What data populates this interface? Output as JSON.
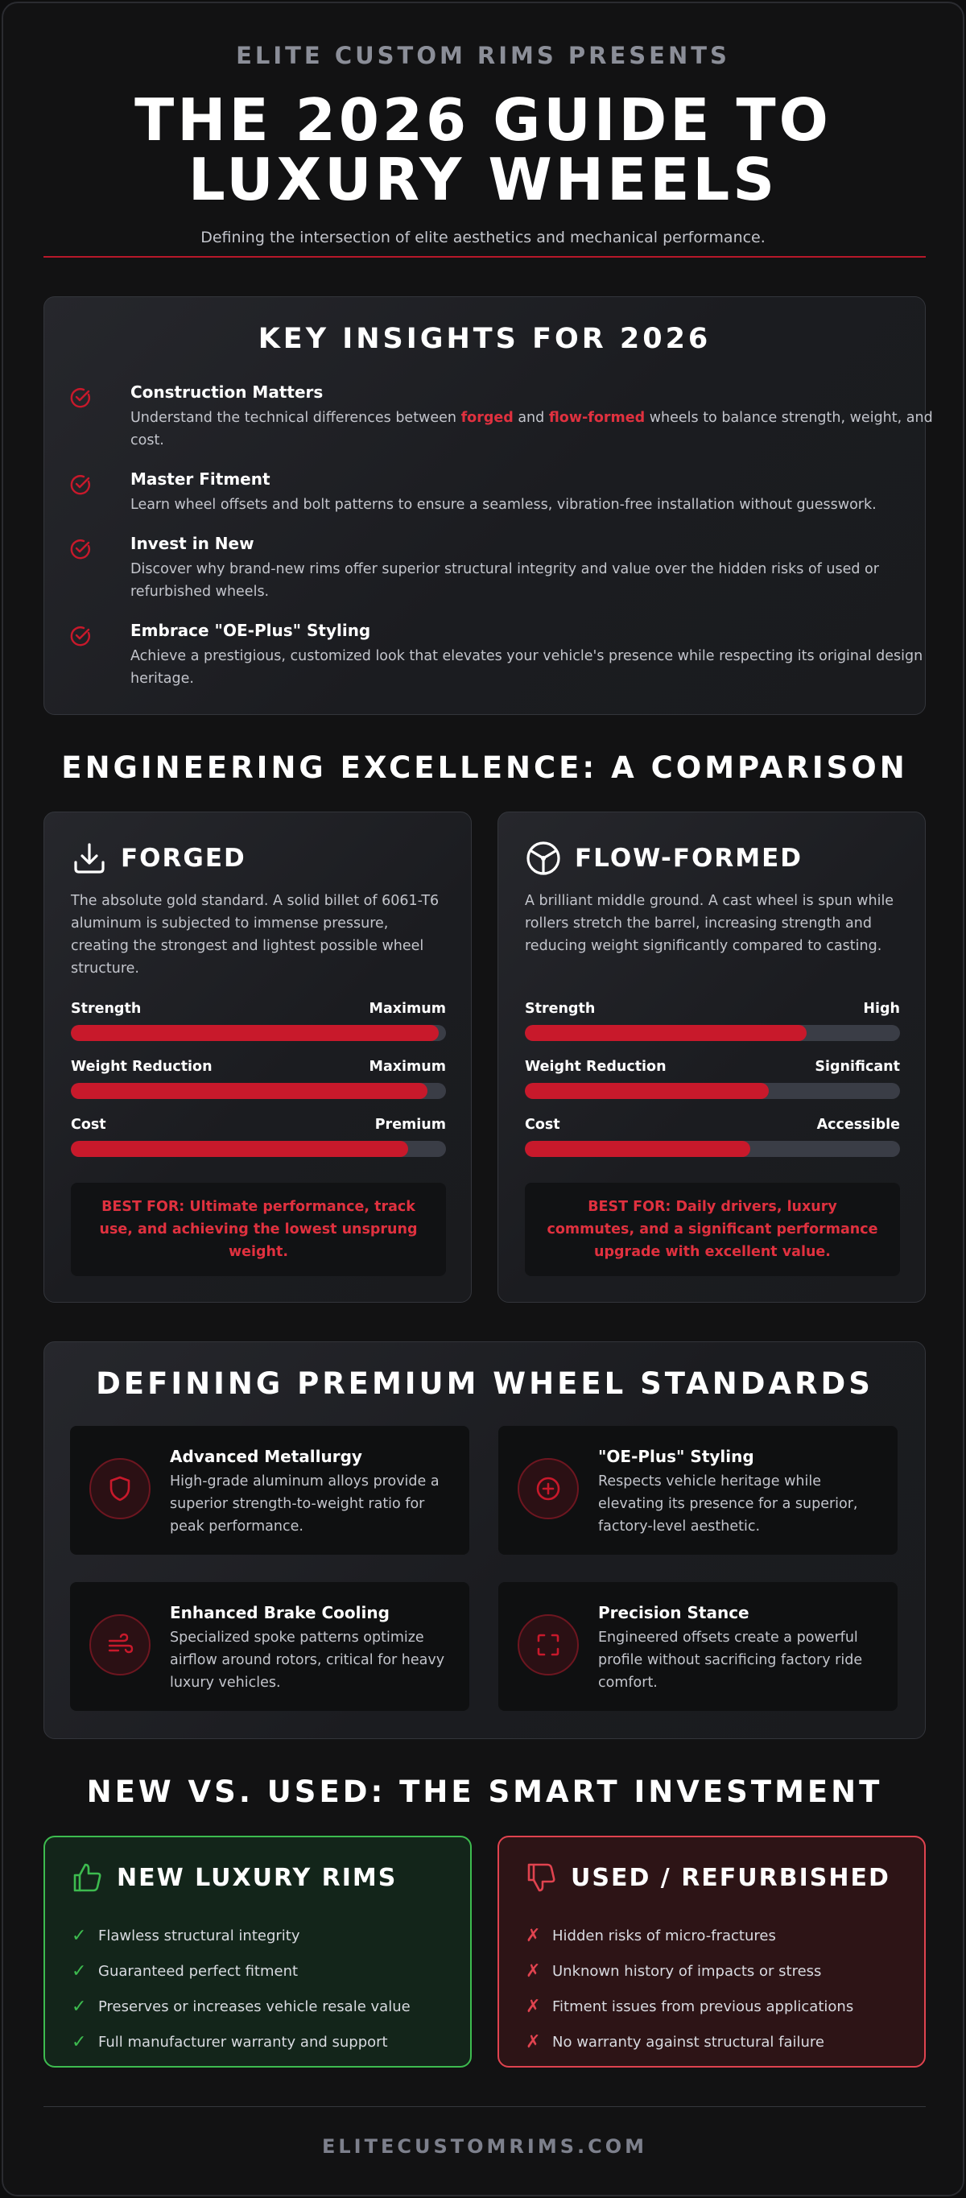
{
  "header": {
    "eyebrow": "ELITE CUSTOM RIMS PRESENTS",
    "title_line1": "THE 2026 GUIDE TO",
    "title_line2": "LUXURY WHEELS",
    "subtitle": "Defining the intersection of elite aesthetics and mechanical performance."
  },
  "insights": {
    "title": "KEY INSIGHTS FOR 2026",
    "items": [
      {
        "head": "Construction Matters",
        "pre": "Understand the technical differences between ",
        "hl1": "forged",
        "mid": " and ",
        "hl2": "flow-formed",
        "post": " wheels to balance strength, weight, and cost."
      },
      {
        "head": "Master Fitment",
        "text": "Learn wheel offsets and bolt patterns to ensure a seamless, vibration-free installation without guesswork."
      },
      {
        "head": "Invest in New",
        "text": "Discover why brand-new rims offer superior structural integrity and value over the hidden risks of used or refurbished wheels."
      },
      {
        "head": "Embrace \"OE-Plus\" Styling",
        "text": "Achieve a prestigious, customized look that elevates your vehicle's presence while respecting its original design heritage."
      }
    ],
    "icon": "check-circle-icon"
  },
  "comparison": {
    "title": "ENGINEERING EXCELLENCE: A COMPARISON",
    "accent": "#c8192b",
    "cards": [
      {
        "title": "FORGED",
        "icon": "download-tray-icon",
        "desc": "The absolute gold standard. A solid billet of 6061-T6 aluminum is subjected to immense pressure, creating the strongest and lightest possible wheel structure.",
        "metrics": [
          {
            "label": "Strength",
            "rating": "Maximum",
            "level": 0.98
          },
          {
            "label": "Weight Reduction",
            "rating": "Maximum",
            "level": 0.95
          },
          {
            "label": "Cost",
            "rating": "Premium",
            "level": 0.9
          }
        ],
        "best_for": "BEST FOR: Ultimate performance, track use, and achieving the lowest unsprung weight."
      },
      {
        "title": "FLOW-FORMED",
        "icon": "wheel-icon",
        "desc": "A brilliant middle ground. A cast wheel is spun while rollers stretch the barrel, increasing strength and reducing weight significantly compared to casting.",
        "metrics": [
          {
            "label": "Strength",
            "rating": "High",
            "level": 0.75
          },
          {
            "label": "Weight Reduction",
            "rating": "Significant",
            "level": 0.65
          },
          {
            "label": "Cost",
            "rating": "Accessible",
            "level": 0.6
          }
        ],
        "best_for": "BEST FOR: Daily drivers, luxury commutes, and a significant performance upgrade with excellent value."
      }
    ]
  },
  "standards": {
    "title": "DEFINING PREMIUM WHEEL STANDARDS",
    "items": [
      {
        "head": "Advanced Metallurgy",
        "text": "High-grade aluminum alloys provide a superior strength-to-weight ratio for peak performance.",
        "icon": "shield-icon"
      },
      {
        "head": "\"OE-Plus\" Styling",
        "text": "Respects vehicle heritage while elevating its presence for a superior, factory-level aesthetic.",
        "icon": "plus-circle-icon"
      },
      {
        "head": "Enhanced Brake Cooling",
        "text": "Specialized spoke patterns optimize airflow around rotors, critical for heavy luxury vehicles.",
        "icon": "wind-icon"
      },
      {
        "head": "Precision Stance",
        "text": "Engineered offsets create a powerful profile without sacrificing factory ride comfort.",
        "icon": "focus-frame-icon"
      }
    ]
  },
  "new_vs_used": {
    "title": "NEW VS. USED: THE SMART INVESTMENT",
    "new": {
      "title": "NEW LUXURY RIMS",
      "icon": "thumbs-up-icon",
      "color": "#3dbb4f",
      "mark": "✓",
      "items": [
        "Flawless structural integrity",
        "Guaranteed perfect fitment",
        "Preserves or increases vehicle resale value",
        "Full manufacturer warranty and support"
      ]
    },
    "used": {
      "title": "USED / REFURBISHED",
      "icon": "thumbs-down-icon",
      "color": "#e0434f",
      "mark": "✗",
      "items": [
        "Hidden risks of micro-fractures",
        "Unknown history of impacts or stress",
        "Fitment issues from previous applications",
        "No warranty against structural failure"
      ]
    }
  },
  "footer": {
    "text": "ELITECUSTOMRIMS.COM"
  }
}
